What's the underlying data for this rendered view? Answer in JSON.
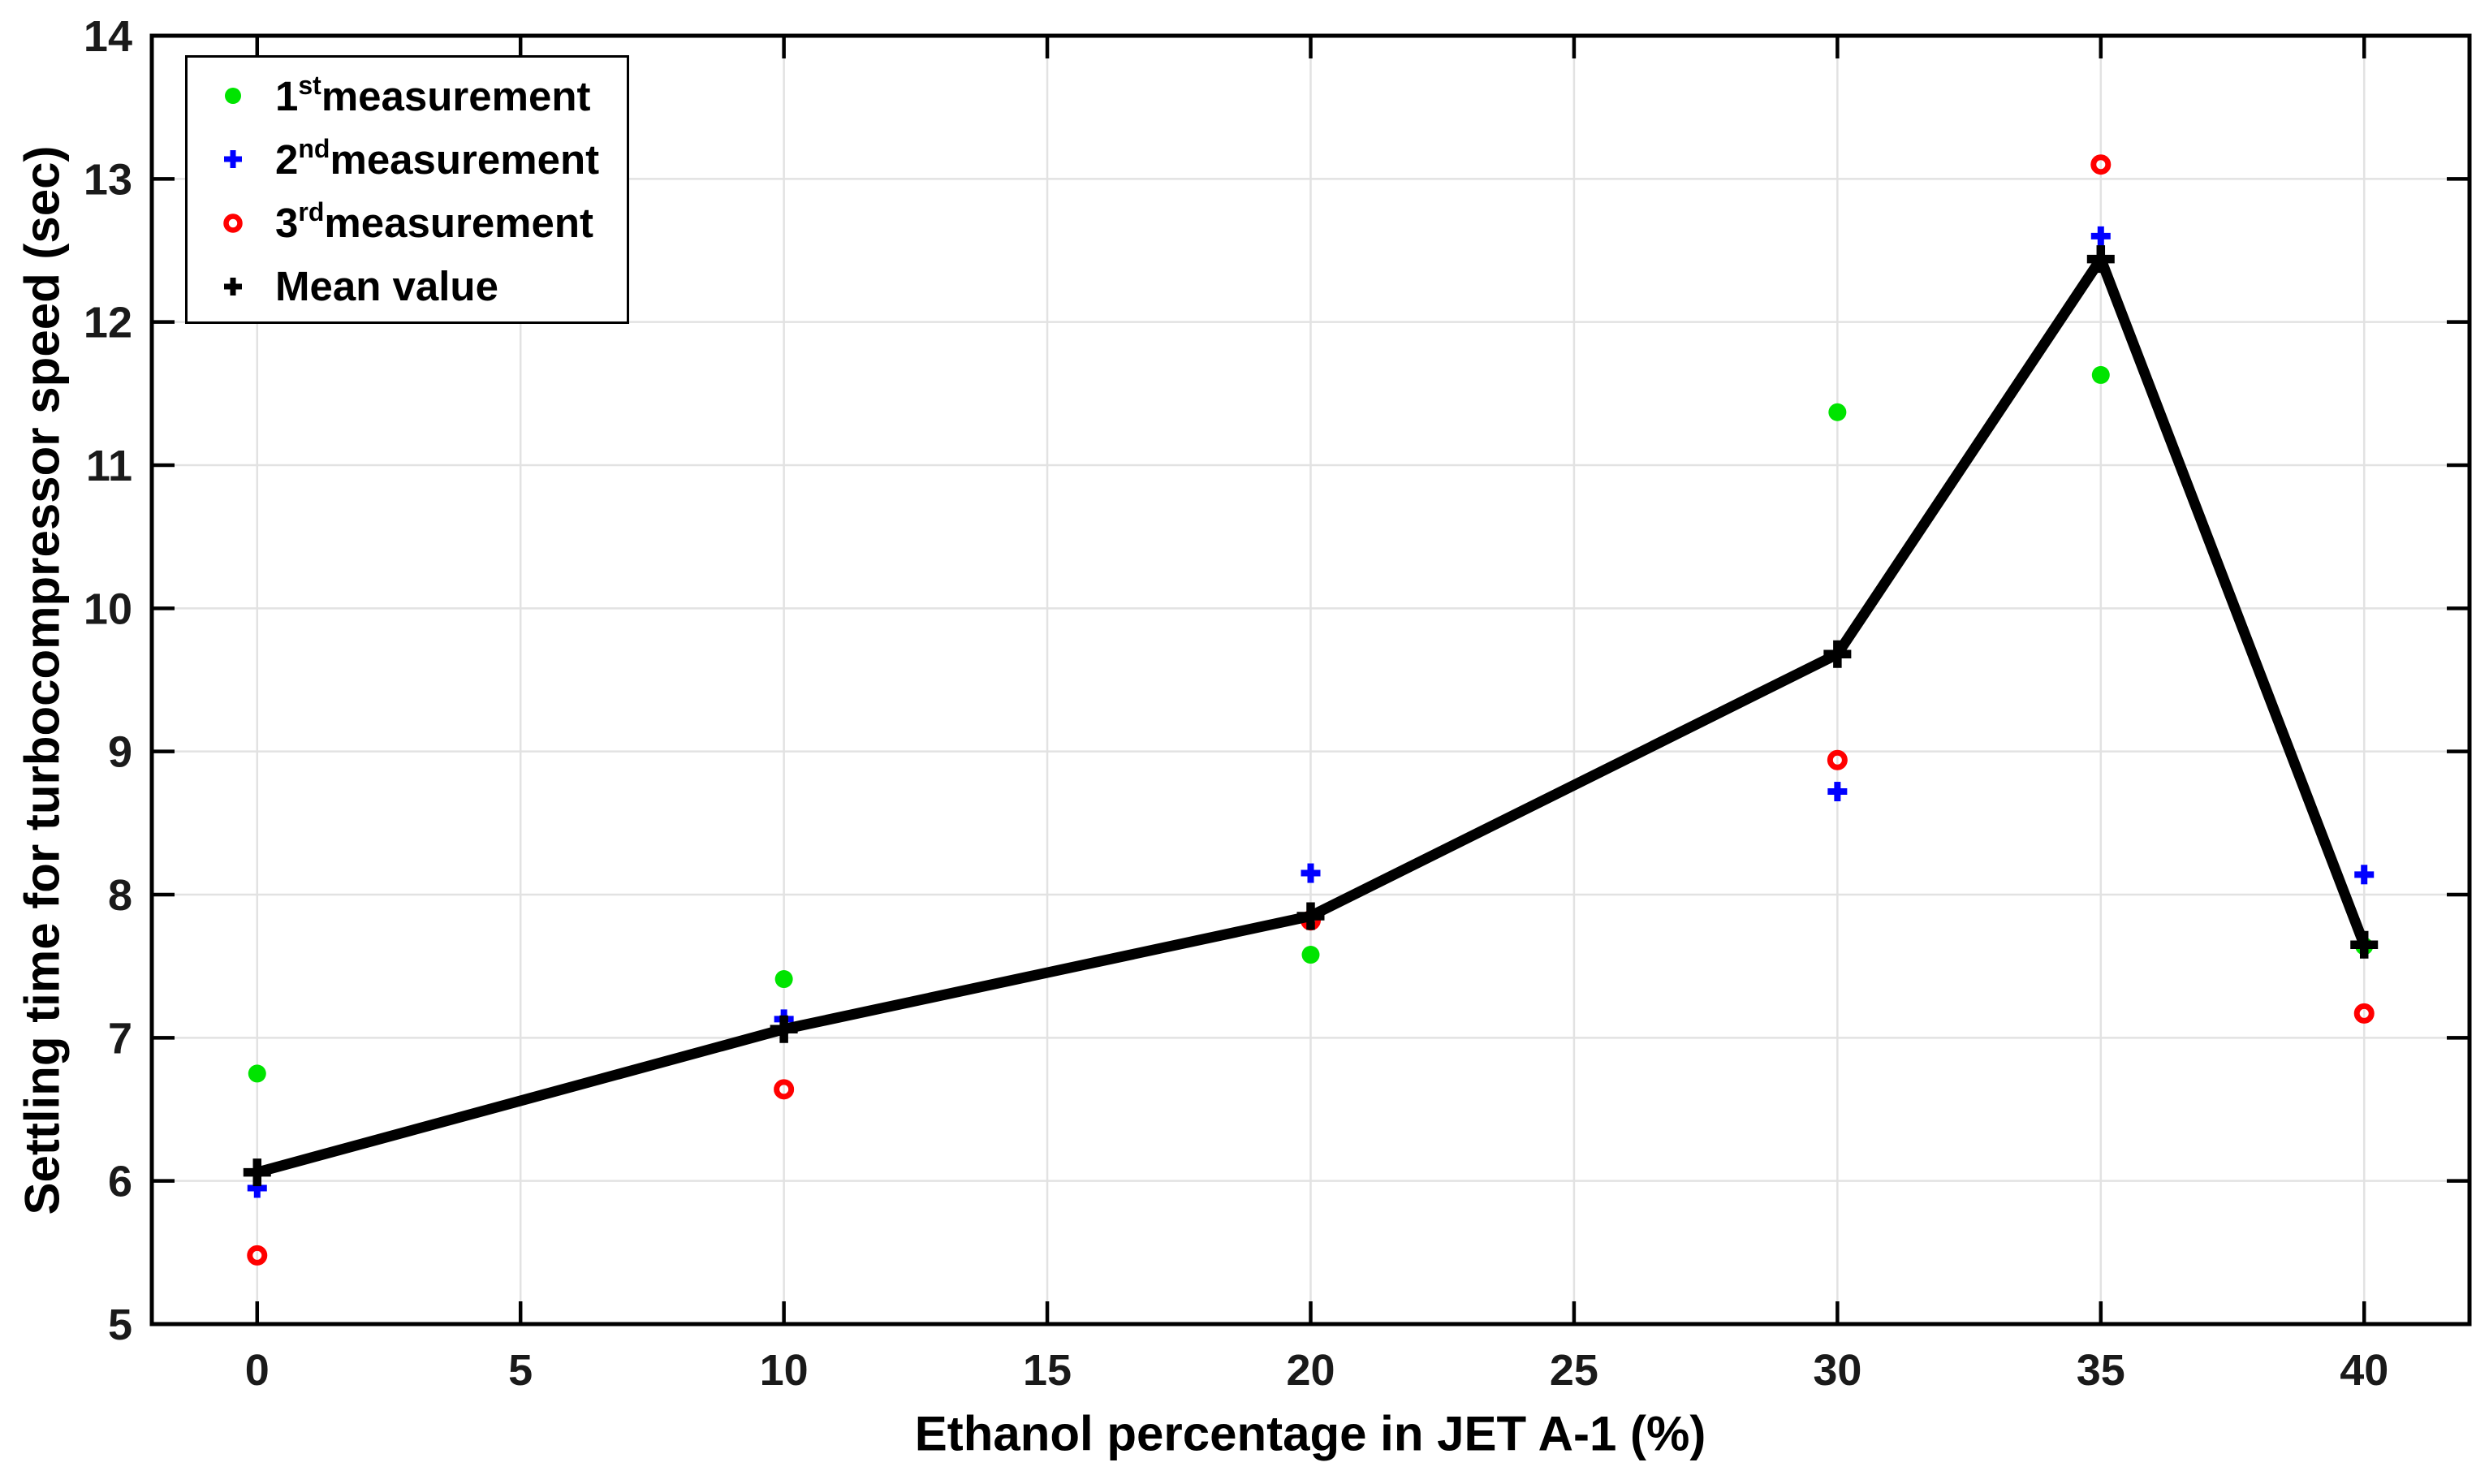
{
  "chart_data": {
    "type": "scatter",
    "title": "",
    "xlabel": "Ethanol percentage in JET A-1 (%)",
    "ylabel": "Settling time for turbocompressor speed (sec)",
    "xlim": [
      -2,
      42
    ],
    "ylim": [
      5,
      14
    ],
    "xticks": [
      0,
      5,
      10,
      15,
      20,
      25,
      30,
      35,
      40
    ],
    "yticks": [
      5,
      6,
      7,
      8,
      9,
      10,
      11,
      12,
      13,
      14
    ],
    "grid": true,
    "legend_position": "top-left",
    "x": [
      0,
      10,
      20,
      30,
      35,
      40
    ],
    "series": [
      {
        "name": "1st measurement",
        "marker": "filled-circle",
        "color": "#00e400",
        "values": [
          6.75,
          7.41,
          7.58,
          11.37,
          11.63,
          7.64
        ]
      },
      {
        "name": "2nd measurement",
        "marker": "plus",
        "color": "#0000ff",
        "values": [
          5.95,
          7.13,
          8.15,
          8.72,
          12.6,
          8.14
        ]
      },
      {
        "name": "3rd measurement",
        "marker": "open-circle",
        "color": "#ff0000",
        "values": [
          5.48,
          6.64,
          7.82,
          8.94,
          13.1,
          7.17
        ]
      },
      {
        "name": "Mean value",
        "marker": "plus",
        "color": "#000000",
        "line": true,
        "values": [
          6.06,
          7.06,
          7.85,
          9.68,
          12.44,
          7.65
        ]
      }
    ],
    "legend": [
      {
        "prefix": "1",
        "sup": "st",
        "text": "measurement"
      },
      {
        "prefix": "2",
        "sup": "nd",
        "text": "measurement"
      },
      {
        "prefix": "3",
        "sup": "rd",
        "text": "measurement"
      },
      {
        "prefix": "",
        "sup": "",
        "text": "Mean value"
      }
    ],
    "colors": {
      "grid": "#e2e2e2",
      "axis": "#000000",
      "tick_label": "#1a1a1a"
    }
  }
}
